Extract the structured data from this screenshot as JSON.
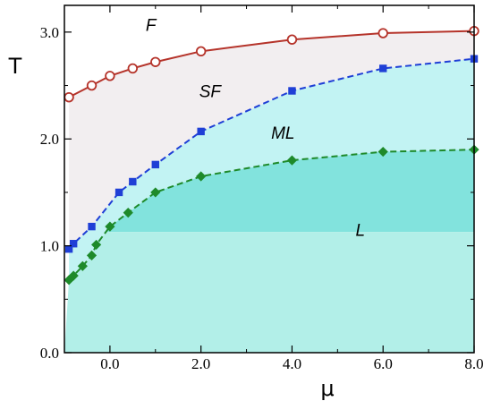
{
  "chart_data": {
    "type": "line",
    "xlabel": "μ",
    "ylabel": "T",
    "xlim": [
      -1.0,
      8.0
    ],
    "ylim": [
      0.0,
      3.25
    ],
    "x_ticks": [
      0.0,
      2.0,
      4.0,
      6.0,
      8.0
    ],
    "x_tick_labels": [
      "0.0",
      "2.0",
      "4.0",
      "6.0",
      "8.0"
    ],
    "y_ticks": [
      0.0,
      1.0,
      2.0,
      3.0
    ],
    "y_tick_labels": [
      "0.0",
      "1.0",
      "2.0",
      "3.0"
    ],
    "grid": false,
    "series": [
      {
        "color": "#b5332a",
        "marker": "open-circle",
        "line_style": "solid",
        "x": [
          -0.9,
          -0.4,
          0.0,
          0.5,
          1.0,
          2.0,
          4.0,
          6.0,
          8.0
        ],
        "y": [
          2.39,
          2.5,
          2.59,
          2.66,
          2.72,
          2.82,
          2.93,
          2.99,
          3.01
        ]
      },
      {
        "color": "#1f3fd6",
        "marker": "square",
        "line_style": "dashed",
        "x": [
          -0.9,
          -0.8,
          -0.4,
          0.2,
          0.5,
          1.0,
          2.0,
          4.0,
          6.0,
          8.0
        ],
        "y": [
          0.97,
          1.02,
          1.18,
          1.5,
          1.6,
          1.76,
          2.07,
          2.45,
          2.66,
          2.75
        ]
      },
      {
        "color": "#1e8a2a",
        "marker": "diamond",
        "line_style": "dashed",
        "x": [
          -0.9,
          -0.8,
          -0.6,
          -0.4,
          -0.3,
          0.0,
          0.4,
          1.0,
          2.0,
          4.0,
          6.0,
          8.0
        ],
        "y": [
          0.68,
          0.72,
          0.81,
          0.91,
          1.01,
          1.18,
          1.31,
          1.5,
          1.65,
          1.8,
          1.88,
          1.9
        ]
      }
    ],
    "regions": [
      {
        "label": "F",
        "x": 0.9,
        "y": 3.07
      },
      {
        "label": "SF",
        "x": 2.2,
        "y": 2.45
      },
      {
        "label": "ML",
        "x": 3.8,
        "y": 2.06
      },
      {
        "label": "L",
        "x": 5.5,
        "y": 1.15
      }
    ],
    "colors": {
      "sf_region": "#f2eef0",
      "ml_region": "#c2f3f3",
      "l_upper_region": "#82e3dd",
      "l_lower_region": "#b2efe8"
    },
    "L_band_split_y": 1.13
  }
}
